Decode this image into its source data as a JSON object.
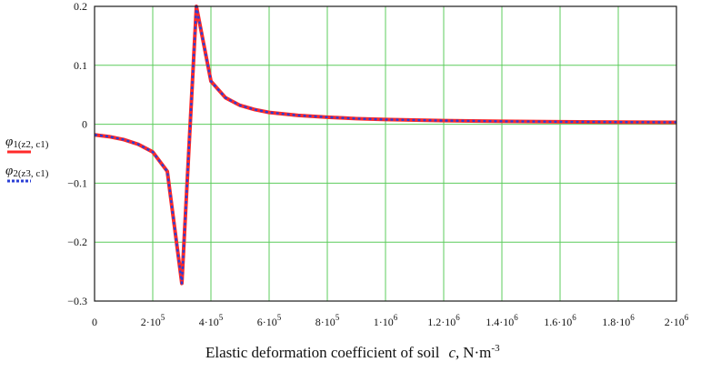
{
  "chart_data": {
    "type": "line",
    "xlabel": "Elastic deformation coefficient of soil  c, N·m⁻³",
    "xlabel_parts": {
      "main": "Elastic deformation coefficient of soil",
      "var": "c,",
      "unit": "N·m",
      "unit_exp": "-3"
    },
    "xlim": [
      0,
      2000000
    ],
    "ylim": [
      -0.3,
      0.2
    ],
    "grid": true,
    "grid_color": "#5ccc5c",
    "x_ticks": [
      {
        "value": 0,
        "base": "0",
        "exp": ""
      },
      {
        "value": 200000,
        "base": "2·10",
        "exp": "5"
      },
      {
        "value": 400000,
        "base": "4·10",
        "exp": "5"
      },
      {
        "value": 600000,
        "base": "6·10",
        "exp": "5"
      },
      {
        "value": 800000,
        "base": "8·10",
        "exp": "5"
      },
      {
        "value": 1000000,
        "base": "1·10",
        "exp": "6"
      },
      {
        "value": 1200000,
        "base": "1.2·10",
        "exp": "6"
      },
      {
        "value": 1400000,
        "base": "1.4·10",
        "exp": "6"
      },
      {
        "value": 1600000,
        "base": "1.6·10",
        "exp": "6"
      },
      {
        "value": 1800000,
        "base": "1.8·10",
        "exp": "6"
      },
      {
        "value": 2000000,
        "base": "2·10",
        "exp": "6"
      }
    ],
    "y_ticks": [
      {
        "value": 0.2,
        "label": "0.2"
      },
      {
        "value": 0.1,
        "label": "0.1"
      },
      {
        "value": 0,
        "label": "0"
      },
      {
        "value": -0.1,
        "label": "−0.1"
      },
      {
        "value": -0.2,
        "label": "−0.2"
      },
      {
        "value": -0.3,
        "label": "−0.3"
      }
    ],
    "legend_position": "left",
    "series": [
      {
        "name": "φ1(z2, c1)",
        "color": "#ff2a2a",
        "style": "solid",
        "x": [
          0,
          50000,
          100000,
          150000,
          200000,
          250000,
          300000,
          350000,
          400000,
          450000,
          500000,
          550000,
          600000,
          700000,
          800000,
          900000,
          1000000,
          1200000,
          1400000,
          1600000,
          1800000,
          2000000
        ],
        "y": [
          -0.018,
          -0.021,
          -0.026,
          -0.034,
          -0.047,
          -0.08,
          -0.27,
          0.2,
          0.073,
          0.045,
          0.032,
          0.025,
          0.02,
          0.015,
          0.012,
          0.0095,
          0.008,
          0.0062,
          0.005,
          0.0042,
          0.0037,
          0.0033
        ]
      },
      {
        "name": "φ2(z3, c1)",
        "color": "#2b3fd6",
        "style": "dotted",
        "x": [
          0,
          50000,
          100000,
          150000,
          200000,
          250000,
          300000,
          350000,
          400000,
          450000,
          500000,
          550000,
          600000,
          700000,
          800000,
          900000,
          1000000,
          1200000,
          1400000,
          1600000,
          1800000,
          2000000
        ],
        "y": [
          -0.018,
          -0.021,
          -0.026,
          -0.034,
          -0.047,
          -0.08,
          -0.27,
          0.2,
          0.073,
          0.045,
          0.032,
          0.025,
          0.02,
          0.015,
          0.012,
          0.0095,
          0.008,
          0.0062,
          0.005,
          0.0042,
          0.0037,
          0.0033
        ]
      }
    ],
    "legend": [
      {
        "base": "φ",
        "sub": "1(z2, c1)",
        "color": "#ff2a2a",
        "style": "solid"
      },
      {
        "base": "φ",
        "sub": "2(z3, c1)",
        "color": "#2b3fd6",
        "style": "dotted"
      }
    ]
  }
}
